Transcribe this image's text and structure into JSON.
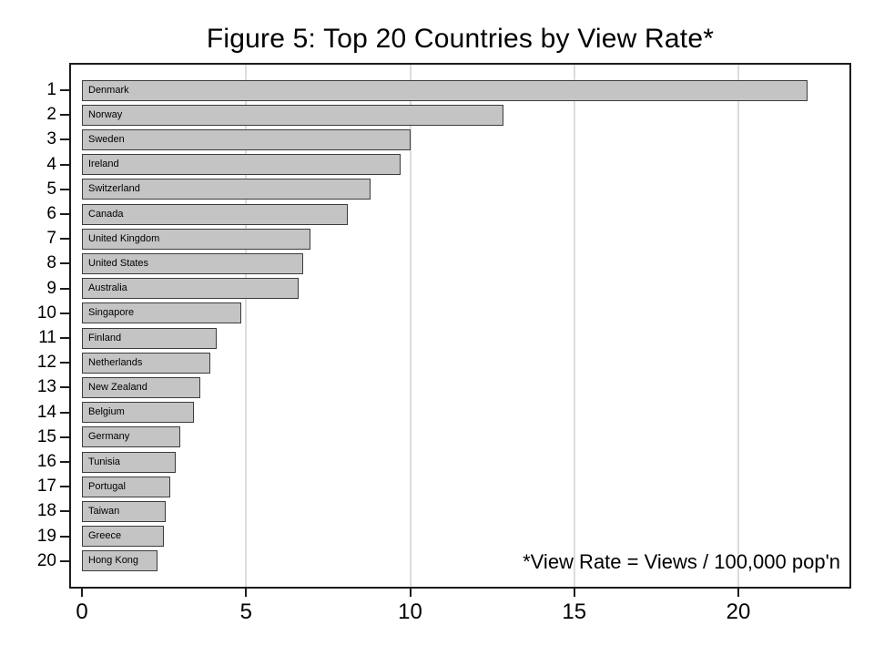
{
  "chart_data": {
    "type": "bar",
    "orientation": "horizontal",
    "title": "Figure 5: Top 20 Countries by View Rate*",
    "annotation": "*View Rate = Views / 100,000 pop'n",
    "xlabel": "",
    "ylabel": "",
    "xlim": [
      0,
      23.4
    ],
    "x_ticks": [
      0,
      5,
      10,
      15,
      20
    ],
    "grid": "vertical light gridlines at x ticks, behind bars",
    "legend": "none",
    "colors": {
      "bar_fill": "#c4c4c4",
      "bar_border": "#3c3c3c",
      "gridline": "#dcdcdc",
      "plot_border": "#1c1c1c",
      "text": "#000000",
      "background": "#ffffff"
    },
    "rows": [
      {
        "rank": "1",
        "country": "Denmark",
        "value": 22.1
      },
      {
        "rank": "2",
        "country": "Norway",
        "value": 12.85
      },
      {
        "rank": "3",
        "country": "Sweden",
        "value": 10.0
      },
      {
        "rank": "4",
        "country": "Ireland",
        "value": 9.7
      },
      {
        "rank": "5",
        "country": "Switzerland",
        "value": 8.8
      },
      {
        "rank": "6",
        "country": "Canada",
        "value": 8.1
      },
      {
        "rank": "7",
        "country": "United Kingdom",
        "value": 6.95
      },
      {
        "rank": "8",
        "country": "United States",
        "value": 6.75
      },
      {
        "rank": "9",
        "country": "Australia",
        "value": 6.6
      },
      {
        "rank": "10",
        "country": "Singapore",
        "value": 4.85
      },
      {
        "rank": "11",
        "country": "Finland",
        "value": 4.1
      },
      {
        "rank": "12",
        "country": "Netherlands",
        "value": 3.9
      },
      {
        "rank": "13",
        "country": "New Zealand",
        "value": 3.6
      },
      {
        "rank": "14",
        "country": "Belgium",
        "value": 3.4
      },
      {
        "rank": "15",
        "country": "Germany",
        "value": 3.0
      },
      {
        "rank": "16",
        "country": "Tunisia",
        "value": 2.85
      },
      {
        "rank": "17",
        "country": "Portugal",
        "value": 2.7
      },
      {
        "rank": "18",
        "country": "Taiwan",
        "value": 2.55
      },
      {
        "rank": "19",
        "country": "Greece",
        "value": 2.5
      },
      {
        "rank": "20",
        "country": "Hong Kong",
        "value": 2.3
      }
    ]
  }
}
